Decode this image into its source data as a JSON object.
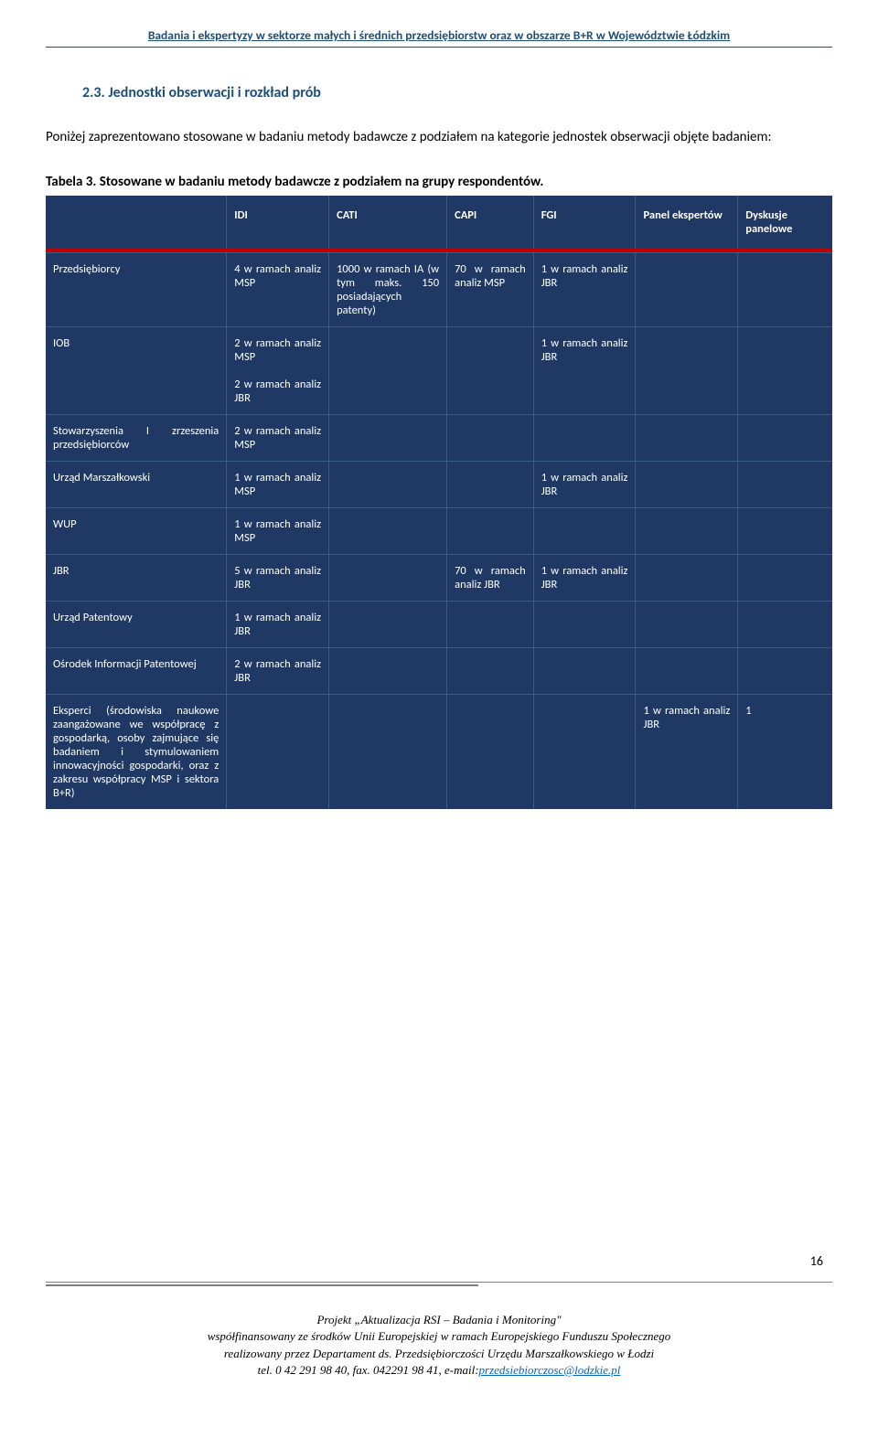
{
  "header": {
    "title": "Badania i ekspertyzy w sektorze małych i średnich przedsiębiorstw oraz w obszarze B+R w Województwie Łódzkim"
  },
  "section": {
    "heading": "2.3. Jednostki obserwacji i rozkład prób",
    "intro": "Poniżej zaprezentowano stosowane w badaniu metody badawcze z podziałem na kategorie jednostek obserwacji objęte badaniem:",
    "caption": "Tabela 3. Stosowane w badaniu metody badawcze z podziałem na grupy respondentów."
  },
  "table": {
    "columns": [
      "",
      "IDI",
      "CATI",
      "CAPI",
      "FGI",
      "Panel ekspertów",
      "Dyskusje panelowe"
    ],
    "rows": [
      {
        "label": "Przedsiębiorcy",
        "idi": "4 w ramach analiz MSP",
        "cati": "1000 w ramach IA (w tym maks. 150 posiadających patenty)",
        "capi": "70 w ramach analiz MSP",
        "fgi": "1 w ramach analiz JBR",
        "panel": "",
        "dysk": ""
      },
      {
        "label": "IOB",
        "idi": "2 w ramach analiz MSP\n\n2 w ramach analiz JBR",
        "cati": "",
        "capi": "",
        "fgi": "1 w ramach analiz JBR",
        "panel": "",
        "dysk": ""
      },
      {
        "label": "Stowarzyszenia I zrzeszenia przedsiębiorców",
        "idi": "2 w ramach analiz MSP",
        "cati": "",
        "capi": "",
        "fgi": "",
        "panel": "",
        "dysk": ""
      },
      {
        "label": "Urząd Marszałkowski",
        "idi": "1 w ramach analiz MSP",
        "cati": "",
        "capi": "",
        "fgi": "1 w ramach analiz JBR",
        "panel": "",
        "dysk": ""
      },
      {
        "label": "WUP",
        "idi": "1 w ramach analiz MSP",
        "cati": "",
        "capi": "",
        "fgi": "",
        "panel": "",
        "dysk": ""
      },
      {
        "label": "JBR",
        "idi": "5 w ramach analiz JBR",
        "cati": "",
        "capi": "70 w ramach analiz JBR",
        "fgi": "1 w ramach analiz JBR",
        "panel": "",
        "dysk": ""
      },
      {
        "label": "Urząd Patentowy",
        "idi": "1 w ramach analiz JBR",
        "cati": "",
        "capi": "",
        "fgi": "",
        "panel": "",
        "dysk": ""
      },
      {
        "label": "Ośrodek Informacji Patentowej",
        "idi": "2 w ramach analiz JBR",
        "cati": "",
        "capi": "",
        "fgi": "",
        "panel": "",
        "dysk": ""
      },
      {
        "label": "Eksperci (środowiska naukowe zaangażowane we współpracę z gospodarką, osoby zajmujące się badaniem i stymulowaniem innowacyjności gospodarki, oraz z zakresu współpracy MSP i sektora B+R)",
        "idi": "",
        "cati": "",
        "capi": "",
        "fgi": "",
        "panel": "1 w ramach analiz JBR",
        "dysk": "1"
      }
    ]
  },
  "page_number": "16",
  "footer": {
    "line1": "Projekt „Aktualizacja RSI – Badania i Monitoring\"",
    "line2": "współfinansowany ze środków Unii Europejskiej w ramach Europejskiego Funduszu Społecznego",
    "line3": "realizowany przez Departament ds. Przedsiębiorczości Urzędu Marszałkowskiego w Łodzi",
    "line4_prefix": "tel. 0 42 291 98 40, fax. 042291 98 41, e-mail:",
    "line4_link": "przedsiebiorczosc@lodzkie.pl"
  }
}
